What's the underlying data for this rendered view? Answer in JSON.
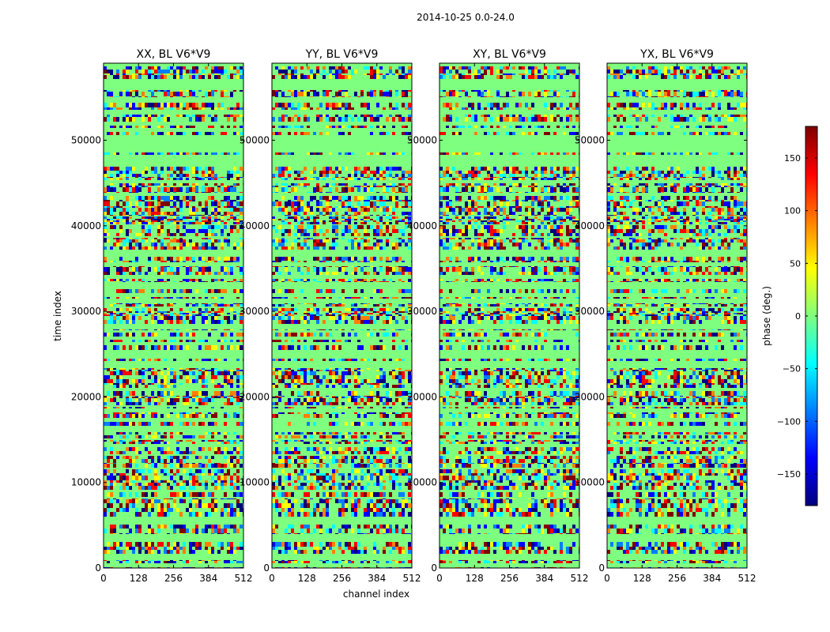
{
  "chart_data": {
    "type": "heatmap",
    "title": "2014-10-25 0.0-24.0",
    "xlabel": "channel index",
    "ylabel": "time index",
    "colorbar_label": "phase (deg.)",
    "colormap": "jet",
    "colormap_stops": [
      "#00007f",
      "#0000ff",
      "#007fff",
      "#00ffff",
      "#7fff7f",
      "#ffff00",
      "#ff7f00",
      "#ff0000",
      "#7f0000"
    ],
    "value_range": [
      -180,
      180
    ],
    "xlim": [
      0,
      512
    ],
    "ylim": [
      0,
      59000
    ],
    "xticks": [
      0,
      128,
      256,
      384,
      512
    ],
    "yticks": [
      0,
      10000,
      20000,
      30000,
      40000,
      50000
    ],
    "colorbar_ticks": [
      -150,
      -100,
      -50,
      0,
      50,
      100,
      150
    ],
    "panels": [
      {
        "title": "XX, BL V6*V9"
      },
      {
        "title": "YY, BL V6*V9"
      },
      {
        "title": "XY, BL V6*V9"
      },
      {
        "title": "YX, BL V6*V9"
      }
    ]
  }
}
